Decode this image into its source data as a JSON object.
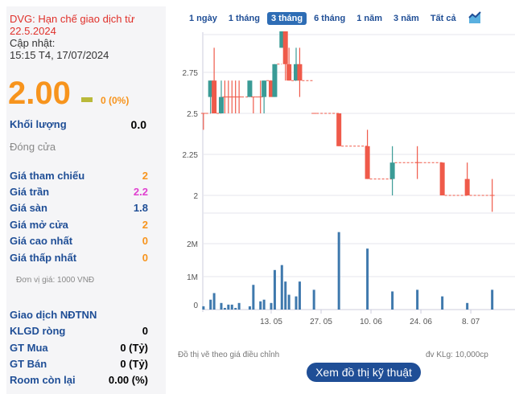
{
  "quote": {
    "warning": "DVG: Hạn chế giao dịch từ 22.5.2024",
    "update_label": "Cập nhật:",
    "update_time": "15:15 T4, 17/07/2024",
    "price": "2.00",
    "change": "0 (0%)",
    "volume_label": "Khối lượng",
    "volume": "0.0",
    "status": "Đóng cửa",
    "stats": [
      {
        "label": "Giá tham chiếu",
        "value": "2",
        "color": "#f7941d"
      },
      {
        "label": "Giá trần",
        "value": "2.2",
        "color": "#e040d0"
      },
      {
        "label": "Giá sàn",
        "value": "1.8",
        "color": "#1f4e96"
      },
      {
        "label": "Giá mở cửa",
        "value": "2",
        "color": "#f7941d"
      },
      {
        "label": "Giá cao nhất",
        "value": "0",
        "color": "#f7941d"
      },
      {
        "label": "Giá thấp nhất",
        "value": "0",
        "color": "#f7941d"
      }
    ],
    "unit": "Đơn vị giá: 1000 VNĐ",
    "foreign_title": "Giao dịch NĐTNN",
    "foreign": [
      {
        "label": "KLGD ròng",
        "value": "0"
      },
      {
        "label": "GT Mua",
        "value": "0 (Tỷ)"
      },
      {
        "label": "GT Bán",
        "value": "0 (Tỷ)"
      },
      {
        "label": "Room còn lại",
        "value": "0.00 (%)"
      }
    ]
  },
  "tabs": [
    "1 ngày",
    "1 tháng",
    "3 tháng",
    "6 tháng",
    "1 năm",
    "3 năm",
    "Tất cả"
  ],
  "active_tab": "3 tháng",
  "chart_icon": "area-chart-icon",
  "colors": {
    "up": "#3a9b96",
    "down": "#ef5a4a",
    "volume": "#3f79ad"
  },
  "chart_data": {
    "type": "candlestick",
    "price_ticks": [
      "2",
      "2.25",
      "2.5",
      "2.75"
    ],
    "price_range": [
      1.95,
      3.0
    ],
    "volume_ticks": [
      "0",
      "1M",
      "2M"
    ],
    "x_ticks": [
      "13. 05",
      "27. 05",
      "10. 06",
      "24. 06",
      "8. 07"
    ],
    "candles": [
      {
        "date": "24.04",
        "o": 2.5,
        "h": 2.5,
        "l": 2.4,
        "c": 2.5,
        "v": 0.1
      },
      {
        "date": "26.04",
        "o": 2.6,
        "h": 2.7,
        "l": 2.5,
        "c": 2.7,
        "v": 0.3
      },
      {
        "date": "27.04",
        "o": 2.7,
        "h": 2.9,
        "l": 2.5,
        "c": 2.5,
        "v": 0.5
      },
      {
        "date": "29.04",
        "o": 2.5,
        "h": 2.7,
        "l": 2.5,
        "c": 2.6,
        "v": 0.2
      },
      {
        "date": "30.04",
        "o": 2.6,
        "h": 2.7,
        "l": 2.5,
        "c": 2.6,
        "v": 0.05
      },
      {
        "date": "01.05",
        "o": 2.6,
        "h": 2.7,
        "l": 2.5,
        "c": 2.6,
        "v": 0.15
      },
      {
        "date": "02.05",
        "o": 2.6,
        "h": 2.7,
        "l": 2.5,
        "c": 2.6,
        "v": 0.15
      },
      {
        "date": "03.05",
        "o": 2.6,
        "h": 2.7,
        "l": 2.5,
        "c": 2.6,
        "v": 0.05
      },
      {
        "date": "04.05",
        "o": 2.6,
        "h": 2.7,
        "l": 2.5,
        "c": 2.6,
        "v": 0.2
      },
      {
        "date": "07.05",
        "o": 2.6,
        "h": 2.7,
        "l": 2.6,
        "c": 2.7,
        "v": 0.1
      },
      {
        "date": "08.05",
        "o": 2.6,
        "h": 2.6,
        "l": 2.5,
        "c": 2.6,
        "v": 0.75
      },
      {
        "date": "10.05",
        "o": 2.6,
        "h": 2.7,
        "l": 2.5,
        "c": 2.6,
        "v": 0.25
      },
      {
        "date": "11.05",
        "o": 2.6,
        "h": 2.7,
        "l": 2.5,
        "c": 2.7,
        "v": 0.3
      },
      {
        "date": "13.05",
        "o": 2.7,
        "h": 2.7,
        "l": 2.6,
        "c": 2.6,
        "v": 0.2
      },
      {
        "date": "14.05",
        "o": 2.6,
        "h": 2.8,
        "l": 2.6,
        "c": 2.8,
        "v": 1.2
      },
      {
        "date": "16.05",
        "o": 2.9,
        "h": 3.0,
        "l": 2.9,
        "c": 3.0,
        "v": 1.35
      },
      {
        "date": "17.05",
        "o": 3.0,
        "h": 3.0,
        "l": 2.7,
        "c": 2.8,
        "v": 0.85
      },
      {
        "date": "18.05",
        "o": 2.8,
        "h": 2.9,
        "l": 2.7,
        "c": 2.7,
        "v": 0.45
      },
      {
        "date": "20.05",
        "o": 2.7,
        "h": 2.9,
        "l": 2.7,
        "c": 2.8,
        "v": 0.4
      },
      {
        "date": "21.05",
        "o": 2.8,
        "h": 2.9,
        "l": 2.6,
        "c": 2.7,
        "v": 0.85
      },
      {
        "date": "25.05",
        "o": 2.5,
        "h": 2.5,
        "l": 2.5,
        "c": 2.5,
        "v": 0.6
      },
      {
        "date": "01.06",
        "o": 2.5,
        "h": 2.5,
        "l": 2.3,
        "c": 2.3,
        "v": 2.35
      },
      {
        "date": "09.06",
        "o": 2.3,
        "h": 2.4,
        "l": 2.1,
        "c": 2.1,
        "v": 1.85
      },
      {
        "date": "16.06",
        "o": 2.1,
        "h": 2.3,
        "l": 2.0,
        "c": 2.2,
        "v": 0.55
      },
      {
        "date": "23.06",
        "o": 2.2,
        "h": 2.3,
        "l": 2.1,
        "c": 2.2,
        "v": 0.6
      },
      {
        "date": "30.06",
        "o": 2.2,
        "h": 2.2,
        "l": 2.0,
        "c": 2.0,
        "v": 0.4
      },
      {
        "date": "07.07",
        "o": 2.1,
        "h": 2.2,
        "l": 2.0,
        "c": 2.0,
        "v": 0.2
      },
      {
        "date": "14.07",
        "o": 2.0,
        "h": 2.1,
        "l": 1.9,
        "c": 2.0,
        "v": 0.6
      }
    ]
  },
  "footer": {
    "note": "Đồ thị vẽ theo giá điều chỉnh",
    "unit": "đv KLg: 10,000cp",
    "button": "Xem đồ thị kỹ thuật"
  }
}
